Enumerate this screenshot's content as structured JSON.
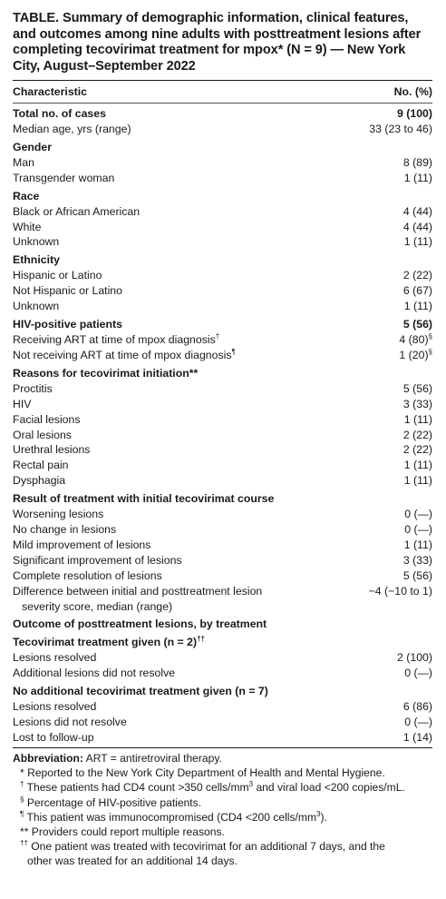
{
  "title": "TABLE. Summary of demographic information, clinical features, and outcomes among nine adults with posttreatment lesions after completing tecovirimat treatment for mpox* (N = 9) — New York City, August–September 2022",
  "columns": {
    "characteristic": "Characteristic",
    "value": "No. (%)"
  },
  "total": {
    "label": "Total no. of cases",
    "value": "9 (100)"
  },
  "median_age": {
    "label": "Median age, yrs (range)",
    "value": "33 (23 to 46)"
  },
  "gender": {
    "heading": "Gender",
    "rows": [
      {
        "label": "Man",
        "value": "8 (89)"
      },
      {
        "label": "Transgender woman",
        "value": "1 (11)"
      }
    ]
  },
  "race": {
    "heading": "Race",
    "rows": [
      {
        "label": "Black or African American",
        "value": "4 (44)"
      },
      {
        "label": "White",
        "value": "4 (44)"
      },
      {
        "label": "Unknown",
        "value": "1 (11)"
      }
    ]
  },
  "ethnicity": {
    "heading": "Ethnicity",
    "rows": [
      {
        "label": "Hispanic or Latino",
        "value": "2 (22)"
      },
      {
        "label": "Not Hispanic or Latino",
        "value": "6 (67)"
      },
      {
        "label": "Unknown",
        "value": "1 (11)"
      }
    ]
  },
  "hiv": {
    "label": "HIV-positive patients",
    "value": "5 (56)",
    "receiving": {
      "label": "Receiving ART at time of mpox diagnosis",
      "mark": "†",
      "value": "4 (80)",
      "value_mark": "§"
    },
    "not_receiving": {
      "label": "Not receiving ART at time of mpox diagnosis",
      "mark": "¶",
      "value": "1 (20)",
      "value_mark": "§"
    }
  },
  "reasons": {
    "heading": "Reasons for tecovirimat initiation**",
    "rows": [
      {
        "label": "Proctitis",
        "value": "5 (56)"
      },
      {
        "label": "HIV",
        "value": "3 (33)"
      },
      {
        "label": "Facial lesions",
        "value": "1 (11)"
      },
      {
        "label": "Oral lesions",
        "value": "2 (22)"
      },
      {
        "label": "Urethral lesions",
        "value": "2 (22)"
      },
      {
        "label": "Rectal pain",
        "value": "1 (11)"
      },
      {
        "label": "Dysphagia",
        "value": "1 (11)"
      }
    ]
  },
  "result": {
    "heading": "Result of treatment with initial tecovirimat course",
    "rows": [
      {
        "label": "Worsening lesions",
        "value": "0 (—)"
      },
      {
        "label": "No change in lesions",
        "value": "0 (—)"
      },
      {
        "label": "Mild improvement of lesions",
        "value": "1 (11)"
      },
      {
        "label": "Significant improvement of lesions",
        "value": "3 (33)"
      },
      {
        "label": "Complete resolution of lesions",
        "value": "5 (56)"
      }
    ],
    "difference": {
      "label_line1": "Difference between initial and posttreatment lesion",
      "label_line2": "severity score, median (range)",
      "value": "−4 (−10 to 1)"
    }
  },
  "outcome": {
    "heading": "Outcome of posttreatment lesions, by treatment",
    "given": {
      "heading": "Tecovirimat treatment given (n = 2)",
      "mark": "††",
      "rows": [
        {
          "label": "Lesions resolved",
          "value": "2 (100)"
        },
        {
          "label": "Additional lesions did not resolve",
          "value": "0 (—)"
        }
      ]
    },
    "not_given": {
      "heading": "No additional tecovirimat treatment given (n = 7)",
      "rows": [
        {
          "label": "Lesions resolved",
          "value": "6 (86)"
        },
        {
          "label": "Lesions did not resolve",
          "value": "0 (—)"
        },
        {
          "label": "Lost to follow-up",
          "value": "1 (14)"
        }
      ]
    }
  },
  "footer": {
    "abbreviation_label": "Abbreviation:",
    "abbreviation_text": " ART = antiretroviral therapy.",
    "notes": {
      "star": {
        "mark": "*",
        "text": " Reported to the New York City Department of Health and Mental Hygiene."
      },
      "dagger": {
        "mark": "†",
        "text": " These patients had CD4 count >350 cells/mm",
        "exp": "3",
        "text2": " and viral load <200 copies/mL."
      },
      "section": {
        "mark": "§",
        "text": " Percentage of HIV-positive patients."
      },
      "pilcrow": {
        "mark": "¶",
        "text": " This patient was immunocompromised (CD4 <200 cells/mm",
        "exp": "3",
        "text2": ")."
      },
      "dstar": {
        "mark": "**",
        "text": " Providers could report multiple reasons."
      },
      "ddagger": {
        "mark": "††",
        "text": " One patient was treated with tecovirimat for an additional 7 days, and the",
        "line2": "other was treated for an additional 14 days."
      }
    }
  }
}
